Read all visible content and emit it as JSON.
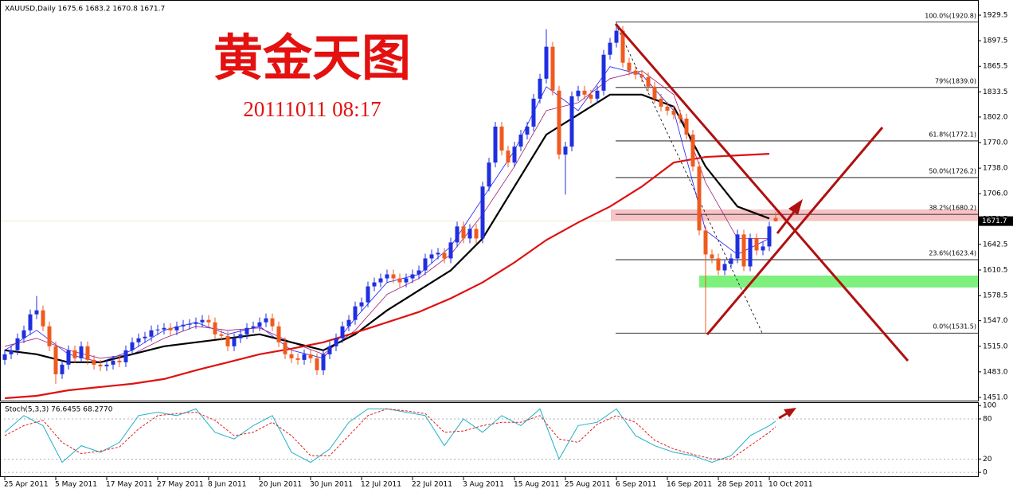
{
  "chart_data": {
    "type": "candlestick",
    "header": "XAUUSD,Daily  1675.6 1683.2 1670.8 1671.7",
    "title": "黄金天图",
    "timestamp": "20111011 08:17",
    "xlim": [
      -0.75,
      152.75
    ],
    "ylim": [
      1447,
      1943.5
    ],
    "yticks": [
      1929.5,
      1897.5,
      1865.5,
      1833.5,
      {
        "value": 1802,
        "label": "1802.0"
      },
      {
        "value": 1770,
        "label": "1770.0"
      },
      {
        "value": 1738,
        "label": "1738.0"
      },
      {
        "value": 1706,
        "label": "1706.0"
      },
      1674.5,
      1642.5,
      1610.5,
      1578.5,
      {
        "value": 1547,
        "label": "1547.0"
      },
      {
        "value": 1515,
        "label": "1515.0"
      },
      {
        "value": 1483,
        "label": "1483.0"
      },
      {
        "value": 1451,
        "label": "1451.0"
      }
    ],
    "xticks": [
      {
        "value": 0,
        "label": "25 Apr 2011"
      },
      {
        "value": 8,
        "label": "5 May 2011"
      },
      {
        "value": 16,
        "label": "17 May 2011"
      },
      {
        "value": 24,
        "label": "27 May 2011"
      },
      {
        "value": 32,
        "label": "8 Jun 2011"
      },
      {
        "value": 40,
        "label": "20 Jun 2011"
      },
      {
        "value": 48,
        "label": "30 Jun 2011"
      },
      {
        "value": 56,
        "label": "12 Jul 2011"
      },
      {
        "value": 64,
        "label": "22 Jul 2011"
      },
      {
        "value": 72,
        "label": "3 Aug 2011"
      },
      {
        "value": 80,
        "label": "15 Aug 2011"
      },
      {
        "value": 88,
        "label": "25 Aug 2011"
      },
      {
        "value": 96,
        "label": "6 Sep 2011"
      },
      {
        "value": 104,
        "label": "16 Sep 2011"
      },
      {
        "value": 112,
        "label": "28 Sep 2011"
      },
      {
        "value": 120,
        "label": "10 Oct 2011"
      }
    ],
    "up_color": "#1f2fe0",
    "down_color": "#f05a1e",
    "open": [
      1498,
      1505,
      1510,
      1525,
      1535,
      1555,
      1560,
      1540,
      1515,
      1480,
      1492,
      1510,
      1500,
      1515,
      1498,
      1492,
      1490,
      1492,
      1497,
      1495,
      1510,
      1520,
      1525,
      1527,
      1535,
      1536,
      1538,
      1535,
      1540,
      1542,
      1543,
      1545,
      1548,
      1545,
      1530,
      1528,
      1515,
      1525,
      1530,
      1538,
      1540,
      1545,
      1550,
      1540,
      1520,
      1505,
      1500,
      1498,
      1505,
      1500,
      1485,
      1505,
      1515,
      1525,
      1540,
      1548,
      1565,
      1570,
      1590,
      1595,
      1600,
      1605,
      1600,
      1595,
      1600,
      1605,
      1610,
      1625,
      1630,
      1632,
      1625,
      1645,
      1665,
      1650,
      1662,
      1650,
      1715,
      1745,
      1790,
      1760,
      1745,
      1765,
      1780,
      1790,
      1825,
      1850,
      1890,
      1835,
      1755,
      1765,
      1828,
      1835,
      1830,
      1825,
      1835,
      1880,
      1895,
      1910,
      1870,
      1860,
      1855,
      1852,
      1840,
      1825,
      1815,
      1810,
      1805,
      1800,
      1780,
      1740,
      1660,
      1630,
      1625,
      1610,
      1618,
      1625,
      1655,
      1615,
      1650,
      1635,
      1640,
      1675.6
    ],
    "high": [
      1511,
      1516,
      1531,
      1541,
      1561,
      1578,
      1566,
      1546,
      1521,
      1498,
      1516,
      1516,
      1521,
      1521,
      1504,
      1498,
      1498,
      1503,
      1503,
      1516,
      1526,
      1531,
      1533,
      1541,
      1542,
      1544,
      1544,
      1546,
      1548,
      1549,
      1551,
      1554,
      1554,
      1551,
      1536,
      1534,
      1531,
      1536,
      1544,
      1546,
      1551,
      1556,
      1556,
      1546,
      1526,
      1511,
      1506,
      1511,
      1511,
      1506,
      1511,
      1521,
      1531,
      1546,
      1554,
      1571,
      1576,
      1596,
      1601,
      1606,
      1611,
      1611,
      1606,
      1606,
      1611,
      1616,
      1631,
      1636,
      1638,
      1638,
      1651,
      1671,
      1671,
      1668,
      1668,
      1721,
      1751,
      1796,
      1796,
      1766,
      1771,
      1786,
      1796,
      1831,
      1856,
      1912,
      1896,
      1841,
      1771,
      1834,
      1841,
      1841,
      1836,
      1841,
      1886,
      1901,
      1920.8,
      1916,
      1876,
      1866,
      1861,
      1858,
      1846,
      1831,
      1821,
      1816,
      1811,
      1806,
      1786,
      1746,
      1666,
      1636,
      1631,
      1624,
      1631,
      1661,
      1661,
      1656,
      1656,
      1646,
      1671,
      1683.2
    ],
    "low": [
      1492,
      1499,
      1504,
      1519,
      1529,
      1549,
      1534,
      1509,
      1468,
      1474,
      1486,
      1494,
      1494,
      1492,
      1486,
      1484,
      1484,
      1486,
      1489,
      1489,
      1504,
      1514,
      1519,
      1521,
      1529,
      1530,
      1529,
      1529,
      1534,
      1536,
      1537,
      1539,
      1539,
      1524,
      1522,
      1509,
      1509,
      1519,
      1524,
      1532,
      1534,
      1539,
      1534,
      1514,
      1499,
      1494,
      1492,
      1492,
      1494,
      1479,
      1479,
      1499,
      1509,
      1519,
      1534,
      1542,
      1559,
      1564,
      1584,
      1589,
      1594,
      1594,
      1589,
      1589,
      1594,
      1599,
      1604,
      1619,
      1624,
      1619,
      1619,
      1639,
      1644,
      1644,
      1644,
      1644,
      1709,
      1739,
      1754,
      1739,
      1739,
      1759,
      1774,
      1784,
      1819,
      1844,
      1829,
      1749,
      1705,
      1759,
      1822,
      1824,
      1819,
      1819,
      1829,
      1874,
      1889,
      1864,
      1854,
      1849,
      1846,
      1834,
      1819,
      1809,
      1804,
      1799,
      1794,
      1774,
      1734,
      1654,
      1531.5,
      1619,
      1604,
      1604,
      1612,
      1619,
      1609,
      1609,
      1629,
      1629,
      1634,
      1670.8
    ],
    "close": [
      1505,
      1510,
      1525,
      1535,
      1555,
      1560,
      1540,
      1515,
      1480,
      1492,
      1510,
      1500,
      1515,
      1498,
      1492,
      1490,
      1492,
      1497,
      1495,
      1510,
      1520,
      1525,
      1527,
      1535,
      1536,
      1538,
      1535,
      1540,
      1542,
      1543,
      1545,
      1548,
      1545,
      1530,
      1528,
      1515,
      1525,
      1530,
      1538,
      1540,
      1545,
      1550,
      1540,
      1520,
      1505,
      1500,
      1498,
      1505,
      1500,
      1485,
      1505,
      1515,
      1525,
      1540,
      1548,
      1565,
      1570,
      1590,
      1595,
      1600,
      1605,
      1600,
      1595,
      1600,
      1605,
      1610,
      1625,
      1630,
      1632,
      1625,
      1645,
      1665,
      1650,
      1662,
      1650,
      1715,
      1745,
      1790,
      1760,
      1745,
      1765,
      1780,
      1790,
      1825,
      1850,
      1890,
      1835,
      1755,
      1765,
      1828,
      1835,
      1830,
      1825,
      1835,
      1880,
      1895,
      1910,
      1870,
      1860,
      1855,
      1852,
      1840,
      1825,
      1815,
      1810,
      1805,
      1800,
      1780,
      1740,
      1660,
      1630,
      1625,
      1610,
      1618,
      1625,
      1655,
      1615,
      1650,
      1635,
      1640,
      1665,
      1671.7
    ],
    "ma_x": [
      0,
      5,
      10,
      15,
      20,
      25,
      30,
      35,
      40,
      45,
      50,
      55,
      60,
      65,
      70,
      75,
      80,
      85,
      90,
      95,
      100,
      105,
      110,
      115,
      120
    ],
    "lines": [
      {
        "color": "#1a1aff",
        "width": 0.8,
        "values": [
          1510,
          1535,
          1505,
          1495,
          1510,
          1535,
          1545,
          1530,
          1540,
          1510,
          1500,
          1550,
          1595,
          1605,
          1640,
          1700,
          1760,
          1840,
          1810,
          1865,
          1855,
          1810,
          1660,
          1630,
          1650
        ]
      },
      {
        "color": "#a0207a",
        "width": 0.8,
        "values": [
          1515,
          1525,
          1510,
          1500,
          1505,
          1525,
          1540,
          1535,
          1538,
          1520,
          1505,
          1535,
          1580,
          1600,
          1630,
          1680,
          1740,
          1810,
          1820,
          1850,
          1860,
          1830,
          1720,
          1650,
          1650
        ]
      },
      {
        "color": "#000000",
        "width": 2.2,
        "values": [
          1510,
          1505,
          1495,
          1495,
          1505,
          1515,
          1520,
          1525,
          1530,
          1520,
          1510,
          1530,
          1560,
          1585,
          1610,
          1650,
          1715,
          1780,
          1805,
          1830,
          1830,
          1815,
          1740,
          1690,
          1675
        ]
      },
      {
        "color": "#e01010",
        "width": 2.2,
        "values": [
          1450,
          1453,
          1460,
          1464,
          1468,
          1474,
          1485,
          1495,
          1505,
          1512,
          1520,
          1532,
          1545,
          1558,
          1575,
          1595,
          1620,
          1648,
          1670,
          1690,
          1715,
          1745,
          1752,
          1754,
          1756
        ]
      }
    ],
    "fib": [
      {
        "label": "100.0%(1920.8)",
        "value": 1920.8
      },
      {
        "label": "79%(1839.0)",
        "value": 1839.0
      },
      {
        "label": "61.8%(1772.1)",
        "value": 1772.1
      },
      {
        "label": "50.0%(1726.2)",
        "value": 1726.2
      },
      {
        "label": "38.2%(1680.2)",
        "value": 1680.2
      },
      {
        "label": "23.6%(1623.4)",
        "value": 1623.4
      },
      {
        "label": "0.0%(1531.5)",
        "value": 1531.5
      }
    ],
    "stoch": {
      "label": "Stoch(5,3,3) 76.6455 68.2770",
      "ylim": [
        -7,
        105
      ],
      "yticks": [
        100,
        80,
        20,
        0
      ],
      "x": [
        0,
        3,
        6,
        9,
        12,
        15,
        18,
        21,
        24,
        27,
        30,
        33,
        36,
        39,
        42,
        45,
        48,
        51,
        54,
        57,
        60,
        63,
        66,
        69,
        72,
        75,
        78,
        81,
        84,
        87,
        90,
        93,
        96,
        99,
        102,
        105,
        108,
        111,
        114,
        117,
        120,
        121
      ],
      "main": {
        "color": "#20b0c8",
        "values": [
          60,
          85,
          70,
          15,
          40,
          30,
          45,
          85,
          90,
          85,
          95,
          60,
          50,
          70,
          85,
          30,
          15,
          35,
          75,
          95,
          95,
          90,
          85,
          40,
          80,
          60,
          85,
          70,
          95,
          20,
          70,
          75,
          95,
          55,
          40,
          30,
          25,
          15,
          25,
          55,
          70,
          76.6455
        ]
      },
      "signal": {
        "color": "#e02020",
        "values": [
          55,
          70,
          78,
          45,
          28,
          32,
          38,
          65,
          85,
          88,
          90,
          78,
          55,
          60,
          75,
          55,
          25,
          25,
          55,
          85,
          95,
          92,
          88,
          60,
          62,
          70,
          75,
          75,
          85,
          50,
          45,
          72,
          85,
          75,
          48,
          35,
          27,
          20,
          20,
          40,
          60,
          68.277
        ]
      }
    }
  }
}
